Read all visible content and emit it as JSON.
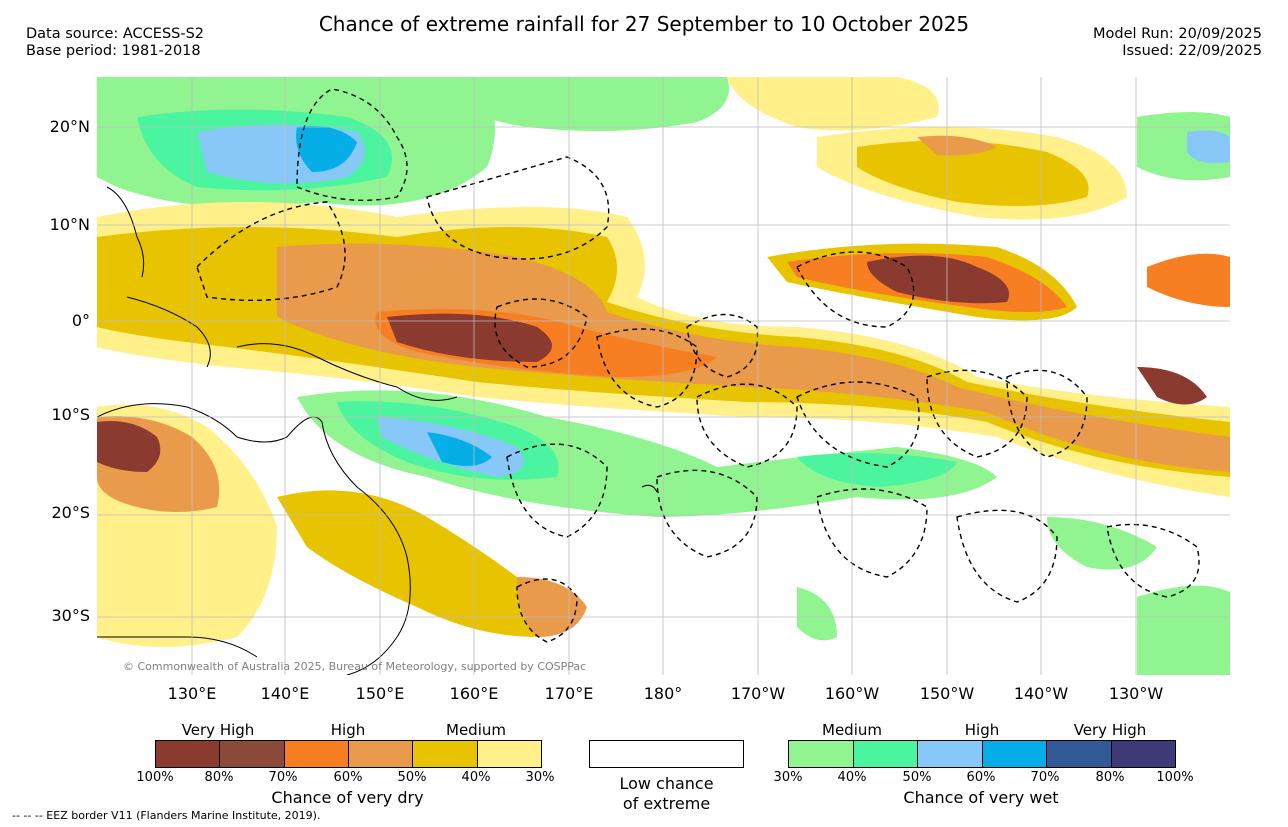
{
  "header": {
    "title": "Chance of extreme rainfall for 27 September to 10 October 2025",
    "data_source": "Data source: ACCESS-S2",
    "base_period": "Base period: 1981-2018",
    "model_run": "Model Run: 20/09/2025",
    "issued": "Issued: 22/09/2025"
  },
  "map": {
    "credit": "© Commonwealth of Australia 2025, Bureau of Meteorology, supported by COSPPac",
    "lat_labels": [
      "20°N",
      "10°N",
      "0°",
      "10°S",
      "20°S",
      "30°S"
    ],
    "lon_labels": [
      "130°E",
      "140°E",
      "150°E",
      "160°E",
      "170°E",
      "180°",
      "170°W",
      "160°W",
      "150°W",
      "140°W",
      "130°W"
    ]
  },
  "legend": {
    "dry": {
      "levels": [
        "Very High",
        "High",
        "Medium"
      ],
      "ticks": [
        "100%",
        "80%",
        "70%",
        "60%",
        "50%",
        "40%",
        "30%"
      ],
      "caption": "Chance of very dry",
      "colors": [
        "#8b3a2f",
        "#8a4a3a",
        "#f77f22",
        "#e99a4a",
        "#e8c400",
        "#fff08a"
      ]
    },
    "neutral": {
      "caption_line1": "Low chance",
      "caption_line2": "of extreme"
    },
    "wet": {
      "levels": [
        "Medium",
        "High",
        "Very High"
      ],
      "ticks": [
        "30%",
        "40%",
        "50%",
        "60%",
        "70%",
        "80%",
        "100%"
      ],
      "caption": "Chance of very wet",
      "colors": [
        "#90f590",
        "#4bf59f",
        "#88c8f8",
        "#06aee8",
        "#315a96",
        "#3d3a78"
      ]
    },
    "footnote": "--  --  -- EEZ border V11 (Flanders Marine Institute, 2019)."
  }
}
